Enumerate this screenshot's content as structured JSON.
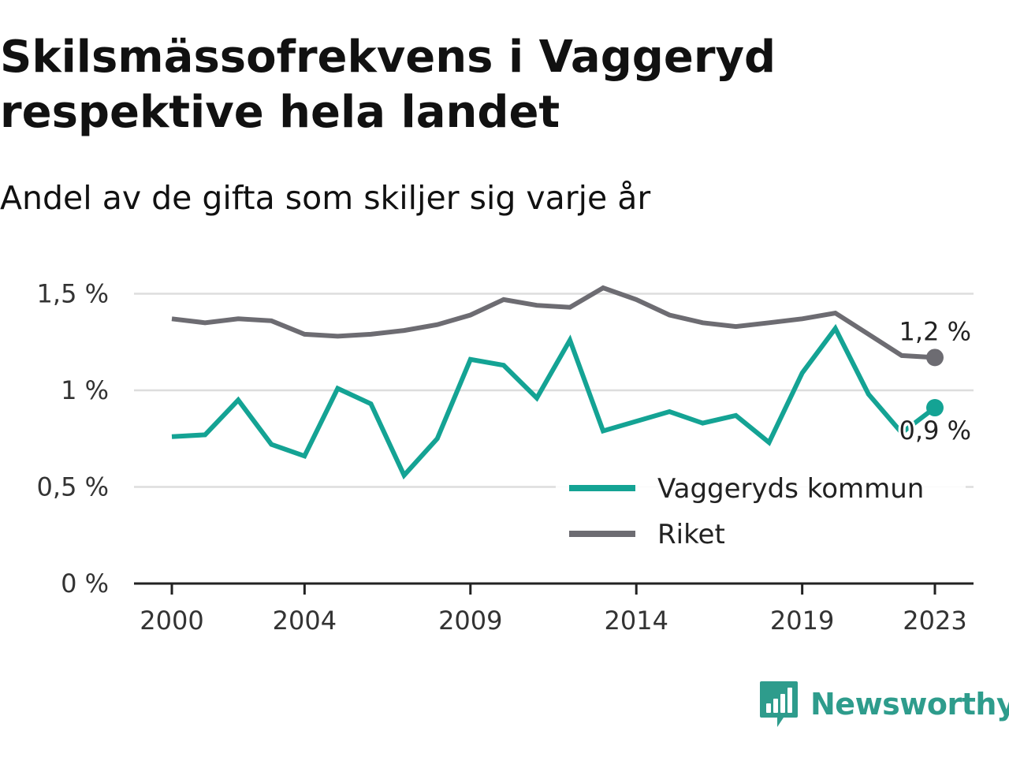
{
  "title": "Skilsmässofrekvens i Vaggeryd respektive hela landet",
  "subtitle": "Andel av de gifta som skiljer sig varje år",
  "brand": {
    "name": "Newsworthy",
    "logo_icon": "bar-chart-speech-bubble-icon",
    "color": "#2e9c8c"
  },
  "colors": {
    "vaggeryd": "#14a394",
    "riket": "#6d6c72",
    "grid": "#dddddd",
    "axis": "#222222"
  },
  "chart_data": {
    "type": "line",
    "title": "Skilsmässofrekvens i Vaggeryd respektive hela landet",
    "subtitle": "Andel av de gifta som skiljer sig varje år",
    "xlabel": "",
    "ylabel": "",
    "x": [
      2000,
      2001,
      2002,
      2003,
      2004,
      2005,
      2006,
      2007,
      2008,
      2009,
      2010,
      2011,
      2012,
      2013,
      2014,
      2015,
      2016,
      2017,
      2018,
      2019,
      2020,
      2021,
      2022,
      2023
    ],
    "x_ticks": [
      "2000",
      "2004",
      "2009",
      "2014",
      "2019",
      "2023"
    ],
    "y_ticks": [
      {
        "value": 0,
        "label": "0 %"
      },
      {
        "value": 0.5,
        "label": "0,5 %"
      },
      {
        "value": 1,
        "label": "1 %"
      },
      {
        "value": 1.5,
        "label": "1,5 %"
      }
    ],
    "ylim": [
      0,
      1.55
    ],
    "grid": true,
    "legend_position": "bottom-right",
    "series": [
      {
        "name": "Vaggeryds kommun",
        "color": "#14a394",
        "values": [
          0.76,
          0.77,
          0.95,
          0.72,
          0.66,
          1.01,
          0.93,
          0.56,
          0.75,
          1.16,
          1.13,
          0.96,
          1.26,
          0.79,
          0.84,
          0.89,
          0.83,
          0.87,
          0.73,
          1.09,
          1.32,
          0.98,
          0.78,
          0.91
        ],
        "end_label": "0,9 %"
      },
      {
        "name": "Riket",
        "color": "#6d6c72",
        "values": [
          1.37,
          1.35,
          1.37,
          1.36,
          1.29,
          1.28,
          1.29,
          1.31,
          1.34,
          1.39,
          1.47,
          1.44,
          1.43,
          1.53,
          1.47,
          1.39,
          1.35,
          1.33,
          1.35,
          1.37,
          1.4,
          1.29,
          1.18,
          1.17
        ],
        "end_label": "1,2 %"
      }
    ]
  }
}
